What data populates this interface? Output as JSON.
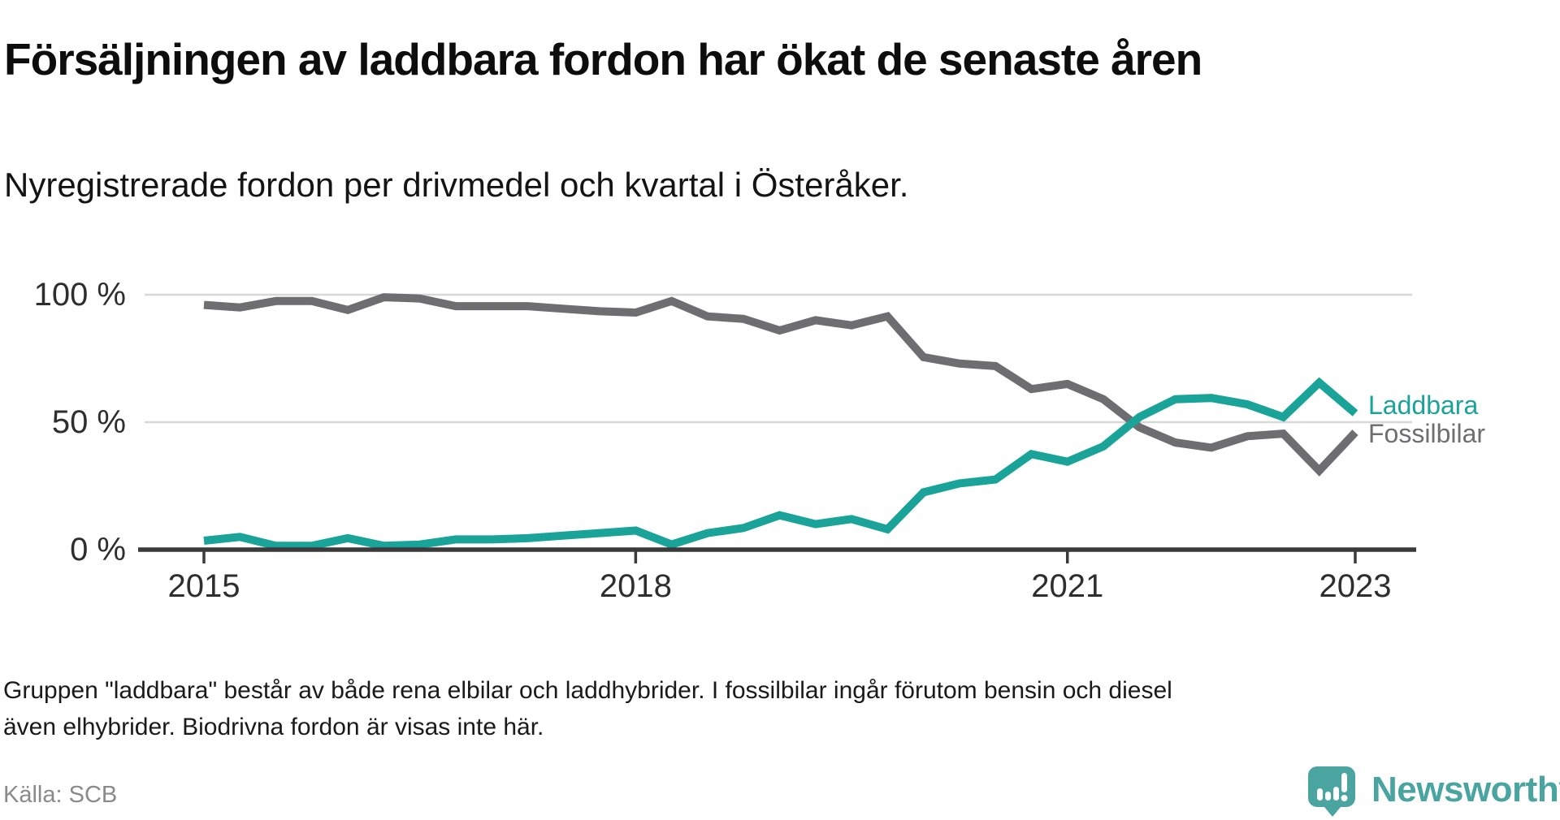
{
  "header": {
    "title": "Försäljningen av laddbara fordon har ökat de senaste åren",
    "subtitle": "Nyregistrerade fordon per drivmedel och kvartal i Österåker."
  },
  "footer": {
    "note": "Gruppen \"laddbara\" består av både rena elbilar och laddhybrider. I fossilbilar ingår förutom bensin och diesel även elhybrider. Biodrivna fordon är visas inte här.",
    "source": "Källa: SCB"
  },
  "branding": {
    "logo_text": "Newsworthy",
    "logo_icon": "newsworthy-chart-bubble-icon",
    "logo_color": "#4AA5A1"
  },
  "chart_data": {
    "type": "line",
    "title": "Försäljningen av laddbara fordon har ökat de senaste åren",
    "subtitle": "Nyregistrerade fordon per drivmedel och kvartal i Österåker.",
    "x": [
      "2015-K1",
      "2015-K2",
      "2015-K3",
      "2015-K4",
      "2016-K1",
      "2016-K2",
      "2016-K3",
      "2016-K4",
      "2017-K1",
      "2017-K2",
      "2017-K3",
      "2017-K4",
      "2018-K1",
      "2018-K2",
      "2018-K3",
      "2018-K4",
      "2019-K1",
      "2019-K2",
      "2019-K3",
      "2019-K4",
      "2020-K1",
      "2020-K2",
      "2020-K3",
      "2020-K4",
      "2021-K1",
      "2021-K2",
      "2021-K3",
      "2021-K4",
      "2022-K1",
      "2022-K2",
      "2022-K3",
      "2022-K4",
      "2023-K1"
    ],
    "series": [
      {
        "name": "Fossilbilar",
        "color": "#6E6E71",
        "values": [
          96,
          95,
          97.5,
          97.5,
          94,
          99,
          98.5,
          95.5,
          95.5,
          95.5,
          94.5,
          93.5,
          93,
          97.5,
          91.5,
          90.5,
          86,
          90,
          88,
          91.5,
          75.5,
          73,
          72,
          63,
          65,
          59,
          48,
          42,
          40,
          44.5,
          45.5,
          31,
          46
        ]
      },
      {
        "name": "Laddbara",
        "color": "#1AA399",
        "values": [
          3.5,
          5,
          1.5,
          1.5,
          4.5,
          1.5,
          2,
          4,
          4,
          4.5,
          5.5,
          6.5,
          7.5,
          2,
          6.5,
          8.5,
          13.5,
          10,
          12,
          8,
          22.5,
          26,
          27.5,
          37.5,
          34.5,
          40.5,
          52,
          59,
          59.5,
          57,
          52,
          65.5,
          53.5
        ]
      }
    ],
    "unit": "%",
    "y_ticks": [
      {
        "label": "100 %",
        "value": 100
      },
      {
        "label": "50 %",
        "value": 50
      },
      {
        "label": "0 %",
        "value": 0
      }
    ],
    "x_ticks": [
      {
        "label": "2015",
        "index": 0
      },
      {
        "label": "2018",
        "index": 12
      },
      {
        "label": "2021",
        "index": 24
      },
      {
        "label": "2023",
        "index": 32
      }
    ],
    "ylim": [
      0,
      100
    ],
    "grid": "horizontal-only",
    "legend_position": "right-of-line-ends",
    "legend": [
      "Laddbara",
      "Fossilbilar"
    ]
  }
}
